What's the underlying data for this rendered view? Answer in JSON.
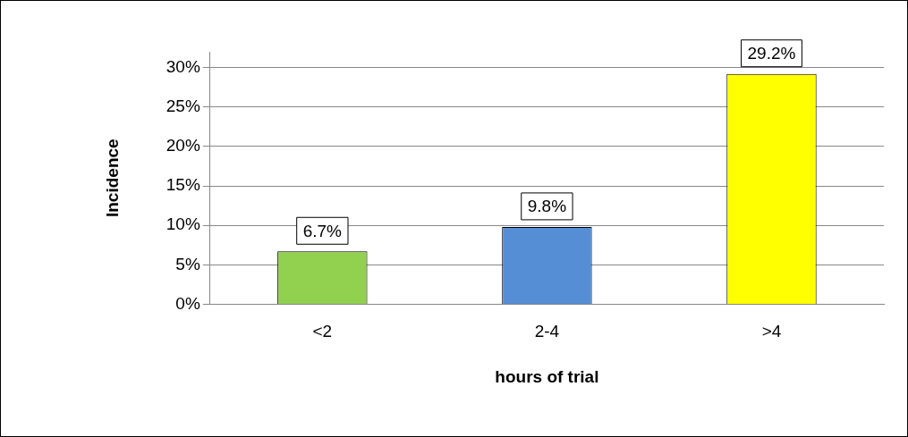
{
  "chart_data": {
    "type": "bar",
    "xlabel": "hours of trial",
    "ylabel": "Incidence",
    "categories": [
      "<2",
      "2-4",
      ">4"
    ],
    "values": [
      6.7,
      9.8,
      29.2
    ],
    "colors": [
      "#92d050",
      "#558ed5",
      "#ffff00"
    ],
    "value_labels": [
      "6.7%",
      "9.8%",
      "29.2%"
    ],
    "ylim": [
      0,
      32
    ],
    "yticks": [
      {
        "value": 0,
        "label": "0%"
      },
      {
        "value": 5,
        "label": "5%"
      },
      {
        "value": 10,
        "label": "10%"
      },
      {
        "value": 15,
        "label": "15%"
      },
      {
        "value": 20,
        "label": "20%"
      },
      {
        "value": 25,
        "label": "25%"
      },
      {
        "value": 30,
        "label": "30%"
      }
    ],
    "grid": "y",
    "legend": false
  }
}
